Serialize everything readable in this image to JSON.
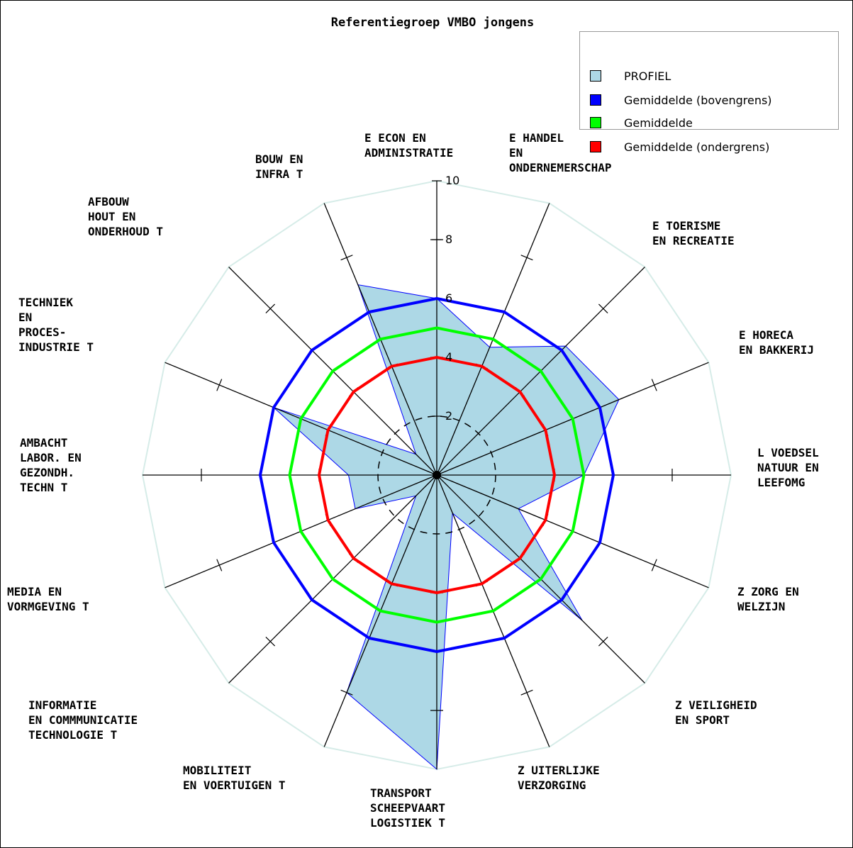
{
  "chart_data": {
    "type": "radar",
    "title": "Referentiegroep VMBO jongens",
    "legend_position": "top-right",
    "axis_range": [
      0,
      10
    ],
    "ticks": [
      2,
      4,
      6,
      8,
      10
    ],
    "tick_labels": [
      "2",
      "4",
      "6",
      "8",
      "10"
    ],
    "categories": [
      [
        "E ECON EN",
        "ADMINISTRATIE"
      ],
      [
        "E HANDEL",
        "EN",
        "ONDERNEMERSCHAP"
      ],
      [
        "E TOERISME",
        "EN RECREATIE"
      ],
      [
        "E HORECA",
        "EN BAKKERIJ"
      ],
      [
        "L VOEDSEL",
        "NATUUR EN",
        "LEEFOMG"
      ],
      [
        "Z ZORG EN",
        "WELZIJN"
      ],
      [
        "Z VEILIGHEID",
        "EN SPORT"
      ],
      [
        "Z UITERLIJKE",
        "VERZORGING"
      ],
      [
        "TRANSPORT",
        "SCHEEPVAART",
        "LOGISTIEK T"
      ],
      [
        "MOBILITEIT",
        "EN VOERTUIGEN T"
      ],
      [
        "INFORMATIE",
        "EN COMMMUNICATIE",
        "TECHNOLOGIE T"
      ],
      [
        "MEDIA EN",
        "VORMGEVING T"
      ],
      [
        "AMBACHT",
        "LABOR. EN",
        "GEZONDH.",
        "TECHN T"
      ],
      [
        "TECHNIEK",
        "EN",
        "PROCES-",
        "INDUSTRIE T"
      ],
      [
        "AFBOUW",
        "HOUT EN",
        "ONDERHOUD T"
      ],
      [
        "BOUW EN",
        "INFRA T"
      ]
    ],
    "series": [
      {
        "name": "PROFIEL",
        "color": "#add8e6",
        "stroke": "#0000ff",
        "values": [
          6.0,
          4.7,
          6.2,
          6.7,
          5.0,
          3.0,
          7.0,
          1.4,
          10.0,
          8.0,
          1.0,
          3.0,
          3.0,
          6.0,
          1.0,
          7.0
        ]
      },
      {
        "name": "Gemiddelde (bovengrens)",
        "color": "#0000ff",
        "values": [
          6,
          6,
          6,
          6,
          6,
          6,
          6,
          6,
          6,
          6,
          6,
          6,
          6,
          6,
          6,
          6
        ]
      },
      {
        "name": "Gemiddelde",
        "color": "#00ff00",
        "values": [
          5,
          5,
          5,
          5,
          5,
          5,
          5,
          5,
          5,
          5,
          5,
          5,
          5,
          5,
          5,
          5
        ]
      },
      {
        "name": "Gemiddelde (ondergrens)",
        "color": "#ff0000",
        "values": [
          4,
          4,
          4,
          4,
          4,
          4,
          4,
          4,
          4,
          4,
          4,
          4,
          4,
          4,
          4,
          4
        ]
      }
    ]
  }
}
